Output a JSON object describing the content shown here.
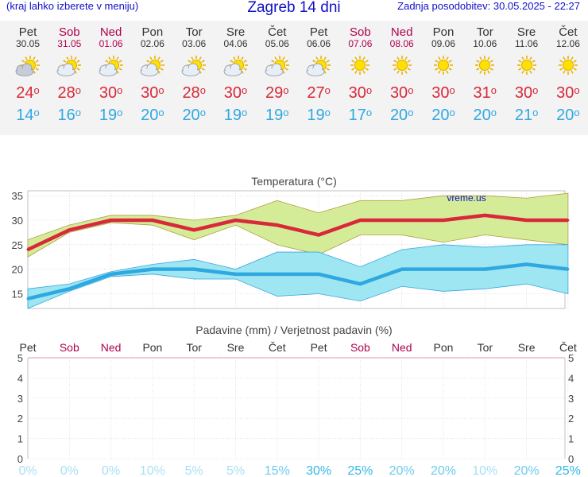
{
  "header": {
    "menu_hint": "(kraj lahko izberete v meniju)",
    "title": "Zagreb 14 dni",
    "updated": "Zadnja posodobitev: 30.05.2025 - 22:27"
  },
  "days": [
    {
      "name": "Pet",
      "date": "30.05",
      "weekend": false,
      "icon": "partly-cloudy-icon",
      "tmax": "24",
      "tmin": "14"
    },
    {
      "name": "Sob",
      "date": "31.05",
      "weekend": true,
      "icon": "sun-cloud-icon",
      "tmax": "28",
      "tmin": "16"
    },
    {
      "name": "Ned",
      "date": "01.06",
      "weekend": true,
      "icon": "sun-cloud-icon",
      "tmax": "30",
      "tmin": "19"
    },
    {
      "name": "Pon",
      "date": "02.06",
      "weekend": false,
      "icon": "sun-cloud-icon",
      "tmax": "30",
      "tmin": "20"
    },
    {
      "name": "Tor",
      "date": "03.06",
      "weekend": false,
      "icon": "sun-cloud-icon",
      "tmax": "28",
      "tmin": "20"
    },
    {
      "name": "Sre",
      "date": "04.06",
      "weekend": false,
      "icon": "sun-cloud-icon",
      "tmax": "30",
      "tmin": "19"
    },
    {
      "name": "Čet",
      "date": "05.06",
      "weekend": false,
      "icon": "sun-cloud-icon",
      "tmax": "29",
      "tmin": "19"
    },
    {
      "name": "Pet",
      "date": "06.06",
      "weekend": false,
      "icon": "sun-cloud-icon",
      "tmax": "27",
      "tmin": "19"
    },
    {
      "name": "Sob",
      "date": "07.06",
      "weekend": true,
      "icon": "sun-icon",
      "tmax": "30",
      "tmin": "17"
    },
    {
      "name": "Ned",
      "date": "08.06",
      "weekend": true,
      "icon": "sun-icon",
      "tmax": "30",
      "tmin": "20"
    },
    {
      "name": "Pon",
      "date": "09.06",
      "weekend": false,
      "icon": "sun-icon",
      "tmax": "30",
      "tmin": "20"
    },
    {
      "name": "Tor",
      "date": "10.06",
      "weekend": false,
      "icon": "sun-icon",
      "tmax": "31",
      "tmin": "20"
    },
    {
      "name": "Sre",
      "date": "11.06",
      "weekend": false,
      "icon": "sun-icon",
      "tmax": "30",
      "tmin": "21"
    },
    {
      "name": "Čet",
      "date": "12.06",
      "weekend": false,
      "icon": "sun-icon",
      "tmax": "30",
      "tmin": "20"
    }
  ],
  "colors": {
    "weekday": "#333333",
    "weekend": "#b00050",
    "tmax": "#d8283a",
    "tmin": "#2fa8e0",
    "title": "#1010c8"
  },
  "chart_data": [
    {
      "type": "line",
      "title": "Temperatura (°C)",
      "watermark": "vreme.us",
      "categories": [
        "Pet",
        "Sob",
        "Ned",
        "Pon",
        "Tor",
        "Sre",
        "Čet",
        "Pet",
        "Sob",
        "Ned",
        "Pon",
        "Tor",
        "Sre",
        "Čet"
      ],
      "ylim": [
        12,
        36
      ],
      "yticks": [
        15,
        20,
        25,
        30,
        35
      ],
      "grid": true,
      "series": [
        {
          "values": [
            24,
            28,
            30,
            30,
            28,
            30,
            29,
            27,
            30,
            30,
            30,
            31,
            30,
            30
          ],
          "color": "#d8283a"
        },
        {
          "values": [
            14,
            16,
            19,
            20,
            20,
            19,
            19,
            19,
            17,
            20,
            20,
            20,
            21,
            20
          ],
          "color": "#2fa8e0"
        }
      ],
      "bands": [
        {
          "upper": [
            26,
            29,
            31,
            31,
            30,
            31,
            34,
            31.5,
            34,
            34,
            35,
            35,
            34.5,
            35.5
          ],
          "lower": [
            22.5,
            27.5,
            29.5,
            29,
            26,
            29,
            25,
            23,
            27,
            27,
            25.5,
            27,
            26,
            25
          ],
          "color": "#d4ec98"
        },
        {
          "upper": [
            16,
            17,
            19.5,
            21,
            22,
            20,
            23.5,
            23.5,
            20.5,
            24,
            25,
            24.5,
            25,
            25
          ],
          "lower": [
            12,
            15.5,
            18.5,
            19,
            18,
            18,
            14.5,
            15,
            13.5,
            16.5,
            15.5,
            16,
            17,
            15
          ],
          "color": "#9ee6f2"
        }
      ]
    },
    {
      "type": "bar",
      "title": "Padavine (mm) / Verjetnost padavin (%)",
      "categories": [
        "Pet",
        "Sob",
        "Ned",
        "Pon",
        "Tor",
        "Sre",
        "Čet",
        "Pet",
        "Sob",
        "Ned",
        "Pon",
        "Tor",
        "Sre",
        "Čet"
      ],
      "ylim": [
        0,
        5
      ],
      "yticks": [
        0,
        1,
        2,
        3,
        4,
        5
      ],
      "series": [
        {
          "name": "Padavine (mm)",
          "values": [
            0,
            0,
            0,
            0,
            0,
            0,
            0,
            0,
            0,
            0,
            0,
            0,
            0,
            0
          ]
        }
      ],
      "probability_labels": [
        "0%",
        "0%",
        "0%",
        "10%",
        "5%",
        "5%",
        "15%",
        "30%",
        "25%",
        "20%",
        "20%",
        "10%",
        "20%",
        "25%"
      ],
      "probability_values": [
        0,
        0,
        0,
        10,
        5,
        5,
        15,
        30,
        25,
        20,
        20,
        10,
        20,
        25
      ]
    }
  ]
}
